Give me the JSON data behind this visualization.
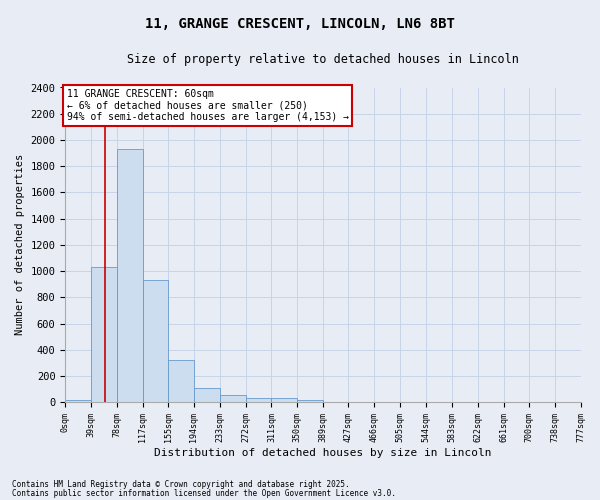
{
  "title_line1": "11, GRANGE CRESCENT, LINCOLN, LN6 8BT",
  "title_line2": "Size of property relative to detached houses in Lincoln",
  "xlabel": "Distribution of detached houses by size in Lincoln",
  "ylabel": "Number of detached properties",
  "bin_edges": [
    0,
    39,
    78,
    117,
    155,
    194,
    233,
    272,
    311,
    350,
    389,
    427,
    466,
    505,
    544,
    583,
    622,
    661,
    700,
    738,
    777
  ],
  "bar_heights": [
    20,
    1030,
    1930,
    930,
    320,
    105,
    55,
    35,
    30,
    15,
    0,
    0,
    0,
    0,
    0,
    0,
    0,
    0,
    0,
    0
  ],
  "bar_color": "#ccddf0",
  "bar_edge_color": "#6699cc",
  "grid_color": "#c8d4e8",
  "background_color": "#e8ecf4",
  "property_line_x": 60,
  "property_line_color": "#cc0000",
  "annotation_text": "11 GRANGE CRESCENT: 60sqm\n← 6% of detached houses are smaller (250)\n94% of semi-detached houses are larger (4,153) →",
  "annotation_box_facecolor": "#ffffff",
  "annotation_box_edgecolor": "#cc0000",
  "ylim": [
    0,
    2400
  ],
  "yticks": [
    0,
    200,
    400,
    600,
    800,
    1000,
    1200,
    1400,
    1600,
    1800,
    2000,
    2200,
    2400
  ],
  "footnote1": "Contains HM Land Registry data © Crown copyright and database right 2025.",
  "footnote2": "Contains public sector information licensed under the Open Government Licence v3.0."
}
